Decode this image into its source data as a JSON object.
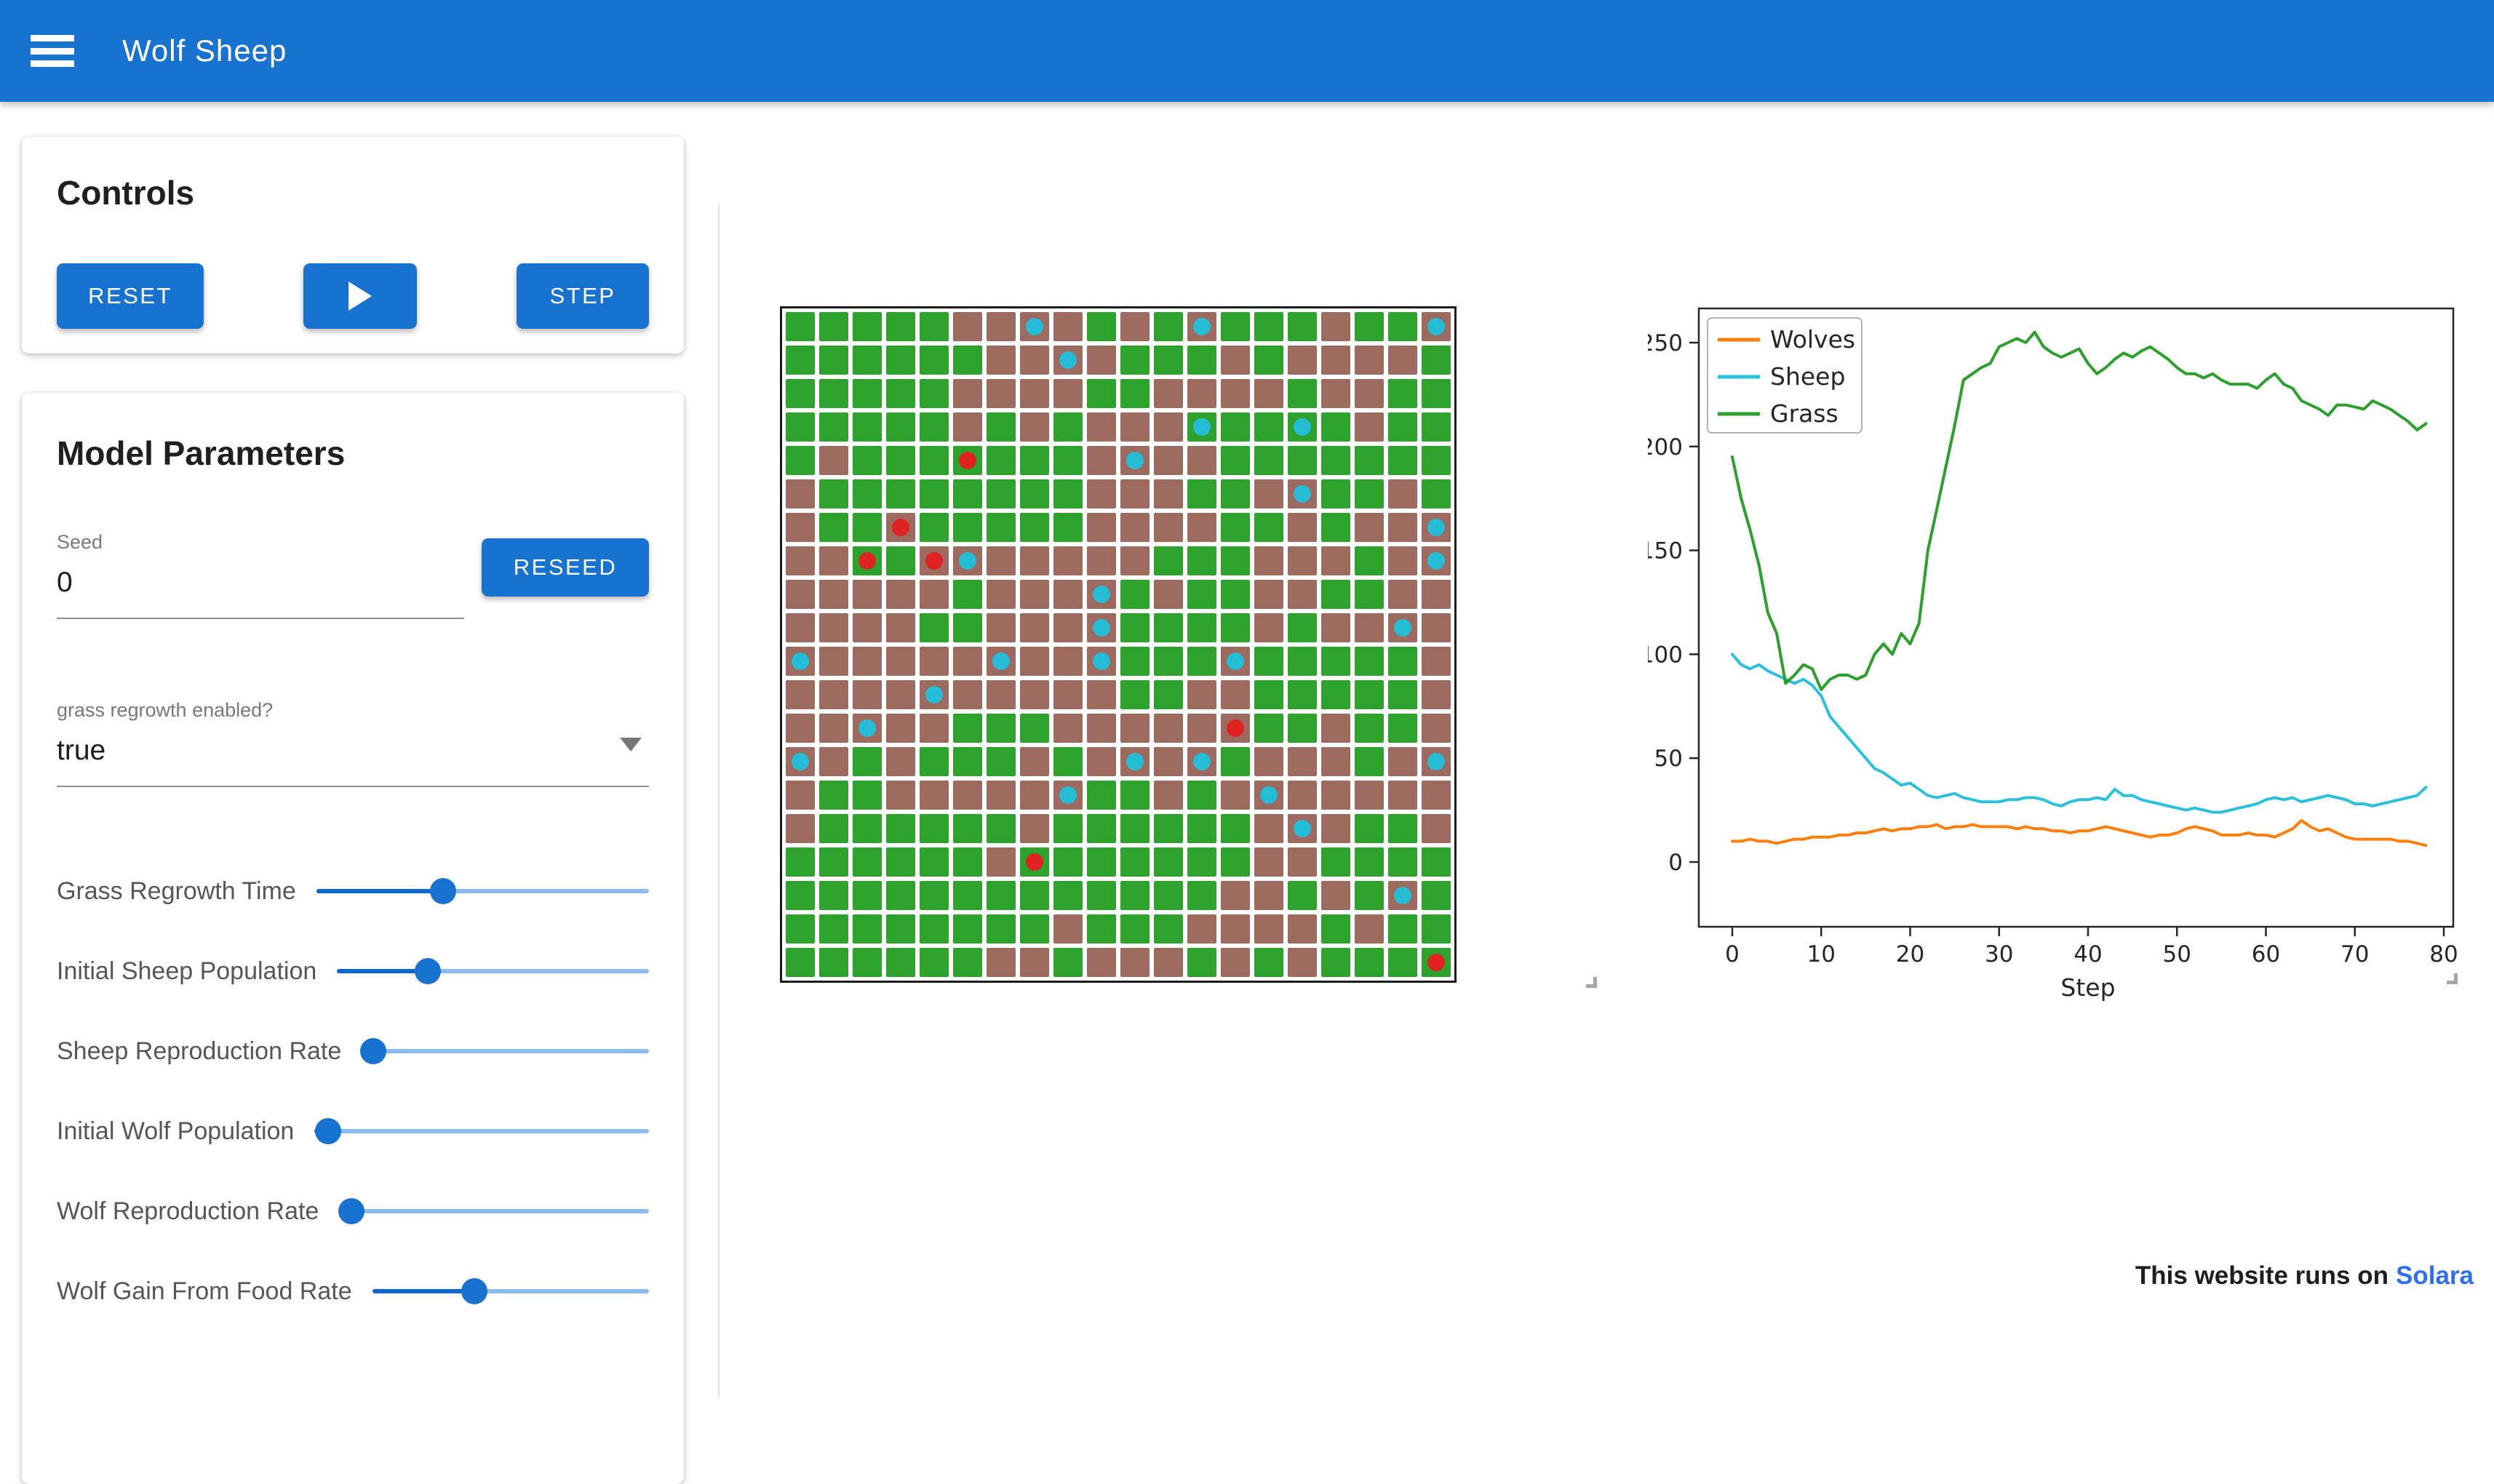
{
  "app_bar": {
    "title": "Wolf Sheep"
  },
  "controls": {
    "title": "Controls",
    "reset_label": "RESET",
    "step_label": "STEP"
  },
  "model_parameters": {
    "title": "Model Parameters",
    "seed": {
      "label": "Seed",
      "value": "0",
      "reseed_label": "RESEED"
    },
    "dropdown": {
      "label": "grass regrowth enabled?",
      "value": "true"
    },
    "sliders": [
      {
        "label": "Grass Regrowth Time",
        "percent": 38
      },
      {
        "label": "Initial Sheep Population",
        "percent": 29
      },
      {
        "label": "Sheep Reproduction Rate",
        "percent": 4
      },
      {
        "label": "Initial Wolf Population",
        "percent": 4
      },
      {
        "label": "Wolf Reproduction Rate",
        "percent": 4
      },
      {
        "label": "Wolf Gain From Food Rate",
        "percent": 37
      }
    ]
  },
  "grid": {
    "rows": 20,
    "cols": 20,
    "colors": {
      "grass": "#2da22c",
      "dirt": "#9c6a5e",
      "sheep": "#25bcd6",
      "wolf": "#e02220"
    },
    "cells": [
      "GGGGGBBBBGBGBGGGBGGB",
      "GGGGGGBBBBGGGBGBBBBG",
      "GGGGGBBBBGGBBBBGBBGG",
      "GGGGGBGBGBBBGGGGGBGG",
      "GBGGGGGGGBBBBGGGGGGG",
      "BGGGGGGGGBBBGGBBGGBG",
      "BGGBGGGGGBBBBGGBGBBB",
      "BBGGBBBBBBBGGGBBBGBB",
      "BBBBBGBBBBGBGGBBGGBB",
      "BBBBGGBBBBGGGGBGBBBB",
      "BBBBBBBBBBGGGBGGGGGB",
      "BBBBBBBBBBGGBBGGGGGB",
      "BBBBBGGGBBBBBBGGBGGB",
      "BBGBGGGBGBBBBGBBBGBB",
      "BGGBBBBBBGGBGBBBBBBB",
      "BGGGGGGBGGGGGGBBBGGB",
      "GGGGGGBGGGGGGGBBGGGG",
      "GGGGGGGGGGGGGBBGBGBG",
      "GGGGGGGGBGGGBBBBGBGG",
      "GGGGGGBBGBBBGBGBGGGG"
    ],
    "agents": [
      {
        "r": 0,
        "c": 7,
        "t": "sheep"
      },
      {
        "r": 0,
        "c": 12,
        "t": "sheep"
      },
      {
        "r": 0,
        "c": 19,
        "t": "sheep"
      },
      {
        "r": 1,
        "c": 8,
        "t": "sheep"
      },
      {
        "r": 3,
        "c": 12,
        "t": "sheep"
      },
      {
        "r": 3,
        "c": 15,
        "t": "sheep"
      },
      {
        "r": 4,
        "c": 10,
        "t": "sheep"
      },
      {
        "r": 5,
        "c": 15,
        "t": "sheep"
      },
      {
        "r": 6,
        "c": 19,
        "t": "sheep"
      },
      {
        "r": 7,
        "c": 5,
        "t": "sheep"
      },
      {
        "r": 7,
        "c": 19,
        "t": "sheep"
      },
      {
        "r": 8,
        "c": 9,
        "t": "sheep"
      },
      {
        "r": 9,
        "c": 9,
        "t": "sheep"
      },
      {
        "r": 9,
        "c": 18,
        "t": "sheep"
      },
      {
        "r": 10,
        "c": 0,
        "t": "sheep"
      },
      {
        "r": 10,
        "c": 6,
        "t": "sheep"
      },
      {
        "r": 10,
        "c": 9,
        "t": "sheep"
      },
      {
        "r": 10,
        "c": 13,
        "t": "sheep"
      },
      {
        "r": 11,
        "c": 4,
        "t": "sheep"
      },
      {
        "r": 12,
        "c": 2,
        "t": "sheep"
      },
      {
        "r": 13,
        "c": 0,
        "t": "sheep"
      },
      {
        "r": 13,
        "c": 10,
        "t": "sheep"
      },
      {
        "r": 13,
        "c": 12,
        "t": "sheep"
      },
      {
        "r": 13,
        "c": 19,
        "t": "sheep"
      },
      {
        "r": 14,
        "c": 8,
        "t": "sheep"
      },
      {
        "r": 14,
        "c": 14,
        "t": "sheep"
      },
      {
        "r": 15,
        "c": 15,
        "t": "sheep"
      },
      {
        "r": 17,
        "c": 18,
        "t": "sheep"
      },
      {
        "r": 4,
        "c": 5,
        "t": "wolf"
      },
      {
        "r": 6,
        "c": 3,
        "t": "wolf"
      },
      {
        "r": 7,
        "c": 2,
        "t": "wolf"
      },
      {
        "r": 7,
        "c": 4,
        "t": "wolf"
      },
      {
        "r": 12,
        "c": 13,
        "t": "wolf"
      },
      {
        "r": 16,
        "c": 7,
        "t": "wolf"
      },
      {
        "r": 19,
        "c": 19,
        "t": "wolf"
      }
    ]
  },
  "chart_data": {
    "type": "line",
    "xlabel": "Step",
    "x_ticks": [
      0,
      10,
      20,
      30,
      40,
      50,
      60,
      70,
      80
    ],
    "y_ticks": [
      0,
      50,
      100,
      150,
      200,
      250
    ],
    "xlim": [
      0,
      80
    ],
    "ylim": [
      0,
      262
    ],
    "legend_position": "upper left",
    "x_step": 1,
    "series": [
      {
        "name": "Wolves",
        "color": "#ff7f0e",
        "values": [
          10,
          10,
          11,
          10,
          10,
          9,
          10,
          11,
          11,
          12,
          12,
          12,
          13,
          13,
          14,
          14,
          15,
          16,
          15,
          16,
          16,
          17,
          17,
          18,
          16,
          17,
          17,
          18,
          17,
          17,
          17,
          17,
          16,
          17,
          16,
          16,
          15,
          15,
          14,
          15,
          15,
          16,
          17,
          16,
          15,
          14,
          13,
          12,
          13,
          13,
          14,
          16,
          17,
          16,
          15,
          13,
          13,
          13,
          14,
          13,
          13,
          12,
          14,
          16,
          20,
          17,
          15,
          16,
          14,
          12,
          11,
          11,
          11,
          11,
          11,
          10,
          10,
          9,
          8
        ]
      },
      {
        "name": "Sheep",
        "color": "#2cc1da",
        "values": [
          100,
          95,
          93,
          95,
          92,
          90,
          88,
          86,
          88,
          85,
          80,
          70,
          65,
          60,
          55,
          50,
          45,
          43,
          40,
          37,
          38,
          35,
          32,
          31,
          32,
          33,
          31,
          30,
          29,
          29,
          29,
          30,
          30,
          31,
          31,
          30,
          28,
          27,
          29,
          30,
          30,
          31,
          30,
          35,
          32,
          32,
          30,
          29,
          28,
          27,
          26,
          25,
          26,
          25,
          24,
          24,
          25,
          26,
          27,
          28,
          30,
          31,
          30,
          31,
          29,
          30,
          31,
          32,
          31,
          30,
          28,
          28,
          27,
          28,
          29,
          30,
          31,
          32,
          36
        ]
      },
      {
        "name": "Grass",
        "color": "#2ca02c",
        "values": [
          195,
          175,
          160,
          143,
          120,
          110,
          86,
          90,
          95,
          93,
          83,
          88,
          90,
          90,
          88,
          90,
          100,
          105,
          100,
          110,
          105,
          115,
          150,
          170,
          190,
          210,
          232,
          235,
          238,
          240,
          248,
          250,
          252,
          250,
          255,
          248,
          245,
          243,
          245,
          247,
          240,
          235,
          238,
          242,
          245,
          243,
          246,
          248,
          245,
          242,
          238,
          235,
          235,
          233,
          235,
          232,
          230,
          230,
          230,
          228,
          232,
          235,
          230,
          228,
          222,
          220,
          218,
          215,
          220,
          220,
          219,
          218,
          222,
          220,
          218,
          215,
          212,
          208,
          211
        ]
      }
    ]
  },
  "footer": {
    "text": "This website runs on",
    "link_label": "Solara"
  }
}
